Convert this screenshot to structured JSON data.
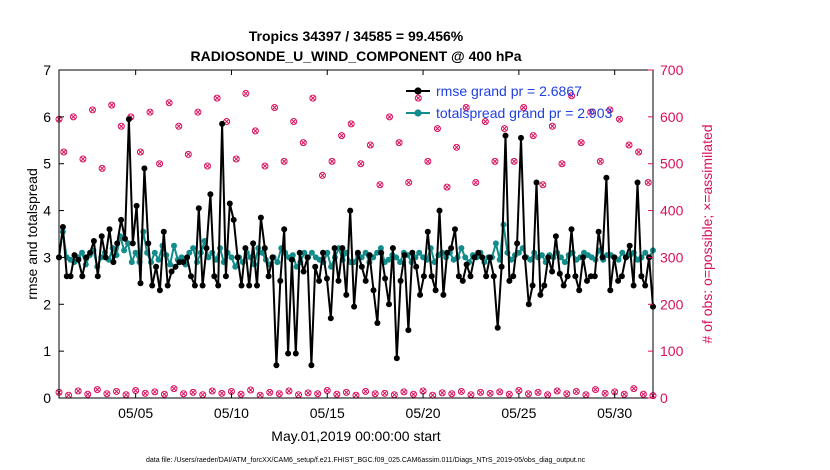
{
  "chart_data": {
    "type": "line",
    "title_line1": "Tropics 34397 / 34585 = 99.456%",
    "title_line2": "RADIOSONDE_U_WIND_COMPONENT @ 400 hPa",
    "xlabel": "May.01,2019 00:00:00 start",
    "ylabel_left": "rmse and totalspread",
    "ylabel_right": "# of obs: o=possible; ×=assimilated",
    "footnote": "data file: /Users/raeder/DAI/ATM_forcXX/CAM6_setup/f.e21.FHIST_BGC.f09_025.CAM6assim.011/Diags_NTrS_2019-05/obs_diag_output.nc",
    "xlim": [
      1,
      32
    ],
    "ylim_left": [
      0,
      7
    ],
    "ylim_right": [
      0,
      700
    ],
    "yticks_left": [
      "0",
      "1",
      "2",
      "3",
      "4",
      "5",
      "6",
      "7"
    ],
    "yticks_right": [
      "0",
      "100",
      "200",
      "300",
      "400",
      "500",
      "600",
      "700"
    ],
    "xtick_positions": [
      5,
      10,
      15,
      20,
      25,
      30
    ],
    "xtick_labels": [
      "05/05",
      "05/10",
      "05/15",
      "05/20",
      "05/25",
      "05/30"
    ],
    "colors": {
      "rmse": "#000000",
      "spread": "#138c8c",
      "obs": "#d9105e",
      "legend_text": "#1f3fe0"
    },
    "series": [
      {
        "name": "rmse grand pr = 2.6867",
        "values": [
          3.0,
          3.65,
          2.6,
          2.6,
          3.05,
          2.95,
          2.6,
          3.0,
          3.1,
          3.35,
          2.6,
          3.45,
          3.0,
          3.6,
          2.9,
          3.3,
          3.8,
          3.4,
          5.95,
          3.3,
          4.1,
          2.45,
          4.9,
          3.3,
          2.4,
          2.8,
          2.3,
          3.55,
          2.4,
          2.7,
          2.8,
          2.9,
          2.9,
          3.0,
          2.6,
          2.4,
          4.05,
          2.4,
          3.2,
          4.35,
          2.6,
          2.4,
          5.85,
          2.6,
          4.15,
          3.8,
          3.0,
          2.4,
          3.2,
          2.4,
          3.3,
          2.4,
          3.85,
          3.2,
          2.6,
          3.0,
          0.7,
          2.5,
          3.6,
          0.95,
          2.95,
          0.95,
          3.1,
          2.7,
          3.0,
          0.7,
          2.8,
          2.5,
          3.1,
          2.55,
          1.7,
          3.2,
          2.5,
          3.2,
          2.2,
          4.0,
          1.95,
          3.1,
          2.8,
          2.5,
          3.05,
          2.3,
          1.6,
          3.1,
          2.55,
          2.0,
          3.2,
          0.85,
          2.5,
          3.05,
          1.45,
          3.1,
          2.8,
          2.2,
          2.6,
          3.55,
          2.6,
          2.3,
          4.0,
          2.2,
          3.1,
          3.2,
          3.6,
          2.6,
          2.5,
          2.85,
          2.6,
          3.0,
          3.1,
          3.0,
          2.6,
          3.0,
          2.6,
          1.5,
          2.8,
          5.6,
          2.5,
          2.6,
          3.3,
          5.55,
          3.0,
          2.0,
          2.4,
          4.6,
          2.2,
          2.4,
          3.0,
          2.7,
          3.45,
          2.65,
          2.4,
          2.6,
          3.6,
          2.6,
          2.3,
          3.0,
          2.5,
          2.6,
          2.6,
          3.55,
          3.0,
          4.7,
          2.3,
          3.0,
          2.5,
          2.6,
          3.0,
          3.25,
          2.4,
          4.6,
          2.6,
          2.4,
          3.0,
          1.95
        ]
      },
      {
        "name": "totalspread grand pr = 2.903",
        "values": [
          3.0,
          3.55,
          3.0,
          2.95,
          2.9,
          3.0,
          3.1,
          2.85,
          3.05,
          3.15,
          2.8,
          3.0,
          3.1,
          2.95,
          3.2,
          3.05,
          3.45,
          3.15,
          3.3,
          2.9,
          3.1,
          2.9,
          3.55,
          3.1,
          2.9,
          3.1,
          2.95,
          3.25,
          3.05,
          2.85,
          3.25,
          2.95,
          3.0,
          2.85,
          3.1,
          3.2,
          2.9,
          3.1,
          3.35,
          3.0,
          3.1,
          2.95,
          3.2,
          2.9,
          3.1,
          3.0,
          2.8,
          3.0,
          2.9,
          3.1,
          3.0,
          2.85,
          3.2,
          3.1,
          2.95,
          2.85,
          3.0,
          2.9,
          3.2,
          3.1,
          3.0,
          3.05,
          2.8,
          2.9,
          3.1,
          3.0,
          3.1,
          3.0,
          2.95,
          2.9,
          3.1,
          2.8,
          3.0,
          3.2,
          2.95,
          3.1,
          2.9,
          2.9,
          3.05,
          3.0,
          3.1,
          2.9,
          3.0,
          3.1,
          3.2,
          2.9,
          2.95,
          3.05,
          3.0,
          2.9,
          3.1,
          3.05,
          2.9,
          3.0,
          3.1,
          3.0,
          2.95,
          3.2,
          2.9,
          3.05,
          3.1,
          3.0,
          3.1,
          2.95,
          3.0,
          3.2,
          3.0,
          2.9,
          3.05,
          3.0,
          3.1,
          2.9,
          3.0,
          3.0,
          3.3,
          2.95,
          3.7,
          3.1,
          2.95,
          3.05,
          3.1,
          3.2,
          3.0,
          2.95,
          3.1,
          3.0,
          3.05,
          2.9,
          3.05,
          3.0,
          3.1,
          3.0,
          2.9,
          3.05,
          3.1,
          2.95,
          3.0,
          3.1,
          3.05,
          3.0,
          2.95,
          3.15,
          2.95,
          3.05,
          3.05,
          3.0,
          2.95,
          3.1,
          3.0,
          3.05,
          3.1,
          2.95,
          3.0,
          3.1,
          3.0,
          3.15
        ]
      }
    ],
    "obs_counts": {
      "high_x": [
        1.0,
        1.25,
        1.75,
        2.25,
        2.75,
        3.25,
        3.75,
        4.25,
        4.75,
        5.25,
        5.75,
        6.25,
        6.75,
        7.25,
        7.75,
        8.25,
        8.75,
        9.25,
        9.75,
        10.25,
        10.75,
        11.25,
        11.75,
        12.25,
        12.75,
        13.25,
        13.75,
        14.25,
        14.75,
        15.25,
        15.75,
        16.25,
        16.75,
        17.25,
        17.75,
        18.25,
        18.75,
        19.25,
        19.75,
        20.25,
        20.75,
        21.25,
        21.75,
        22.25,
        22.75,
        23.25,
        23.75,
        24.25,
        24.75,
        25.25,
        25.75,
        26.25,
        26.75,
        27.25,
        27.75,
        28.25,
        28.75,
        29.25,
        29.75,
        30.25,
        30.75,
        31.25,
        31.75
      ],
      "high_values": [
        595,
        525,
        600,
        510,
        615,
        490,
        625,
        580,
        600,
        525,
        610,
        500,
        630,
        580,
        520,
        610,
        495,
        640,
        590,
        510,
        650,
        570,
        495,
        620,
        505,
        590,
        545,
        640,
        475,
        505,
        560,
        585,
        500,
        540,
        455,
        600,
        545,
        460,
        640,
        505,
        575,
        450,
        535,
        620,
        460,
        590,
        505,
        575,
        505,
        620,
        560,
        455,
        580,
        500,
        645,
        545,
        610,
        505,
        615,
        595,
        540,
        525,
        460
      ],
      "low_x": [
        1.0,
        1.5,
        2.0,
        2.5,
        3.0,
        3.5,
        4.0,
        4.5,
        5.0,
        5.5,
        6.0,
        6.5,
        7.0,
        7.5,
        8.0,
        8.5,
        9.0,
        9.5,
        10.0,
        10.5,
        11.0,
        11.5,
        12.0,
        12.5,
        13.0,
        13.5,
        14.0,
        14.5,
        15.0,
        15.5,
        16.0,
        16.5,
        17.0,
        17.5,
        18.0,
        18.5,
        19.0,
        19.5,
        20.0,
        20.5,
        21.0,
        21.5,
        22.0,
        22.5,
        23.0,
        23.5,
        24.0,
        24.5,
        25.0,
        25.5,
        26.0,
        26.5,
        27.0,
        27.5,
        28.0,
        28.5,
        29.0,
        29.5,
        30.0,
        30.5,
        31.0,
        31.5,
        32.0
      ],
      "low_values": [
        12,
        6,
        15,
        8,
        18,
        9,
        14,
        7,
        16,
        10,
        13,
        8,
        20,
        9,
        12,
        7,
        15,
        10,
        14,
        8,
        17,
        6,
        12,
        9,
        15,
        7,
        11,
        9,
        16,
        8,
        12,
        6,
        14,
        9,
        10,
        7,
        13,
        8,
        15,
        6,
        11,
        9,
        14,
        7,
        12,
        10,
        13,
        8,
        16,
        9,
        12,
        7,
        15,
        9,
        14,
        7,
        18,
        10,
        13,
        8,
        20,
        8,
        5
      ]
    }
  }
}
